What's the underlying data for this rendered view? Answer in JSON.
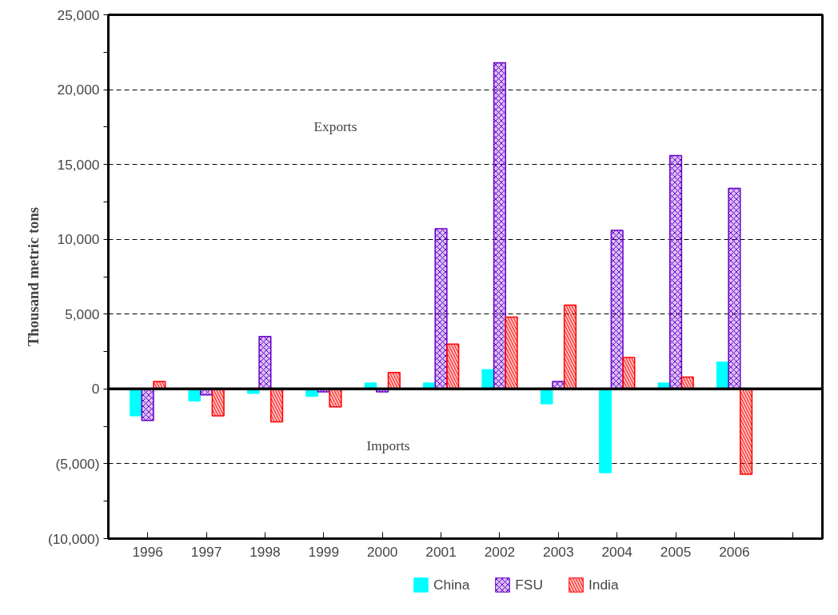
{
  "chart_data": {
    "type": "bar",
    "ylabel": "Thousand metric tons",
    "annotations": [
      "Exports",
      "Imports"
    ],
    "categories": [
      "1996",
      "1997",
      "1998",
      "1999",
      "2000",
      "2001",
      "2002",
      "2003",
      "2004",
      "2005",
      "2006",
      null
    ],
    "series": [
      {
        "name": "China",
        "color": "#00ffff",
        "values": [
          -1800,
          -800,
          -300,
          -500,
          400,
          400,
          1300,
          -1000,
          -5600,
          400,
          1800,
          null
        ]
      },
      {
        "name": "FSU",
        "color": "#6600cc",
        "values": [
          -2100,
          -400,
          3500,
          -200,
          -200,
          10700,
          21800,
          500,
          10600,
          15600,
          13400,
          null
        ]
      },
      {
        "name": "India",
        "color": "#ff0000",
        "values": [
          500,
          -1800,
          -2200,
          -1200,
          1100,
          3000,
          4800,
          5600,
          2100,
          800,
          -5700,
          null
        ]
      }
    ],
    "ylim": [
      -10000,
      25000
    ],
    "yticks": [
      {
        "value": -10000,
        "label": "(10,000)"
      },
      {
        "value": -5000,
        "label": "(5,000)"
      },
      {
        "value": 0,
        "label": "0"
      },
      {
        "value": 5000,
        "label": "5,000"
      },
      {
        "value": 10000,
        "label": "10,000"
      },
      {
        "value": 15000,
        "label": "15,000"
      },
      {
        "value": 20000,
        "label": "20,000"
      },
      {
        "value": 25000,
        "label": "25,000"
      }
    ],
    "ref_lines": [
      {
        "axis": "y",
        "value": 0,
        "color": "#000000"
      }
    ],
    "grid": "y",
    "legend": "bottom"
  }
}
